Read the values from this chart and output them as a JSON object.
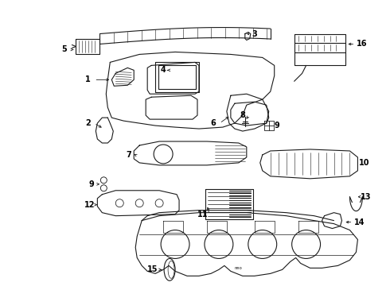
{
  "background_color": "#ffffff",
  "line_color": "#1a1a1a",
  "text_color": "#000000",
  "figsize": [
    4.9,
    3.6
  ],
  "dpi": 100
}
